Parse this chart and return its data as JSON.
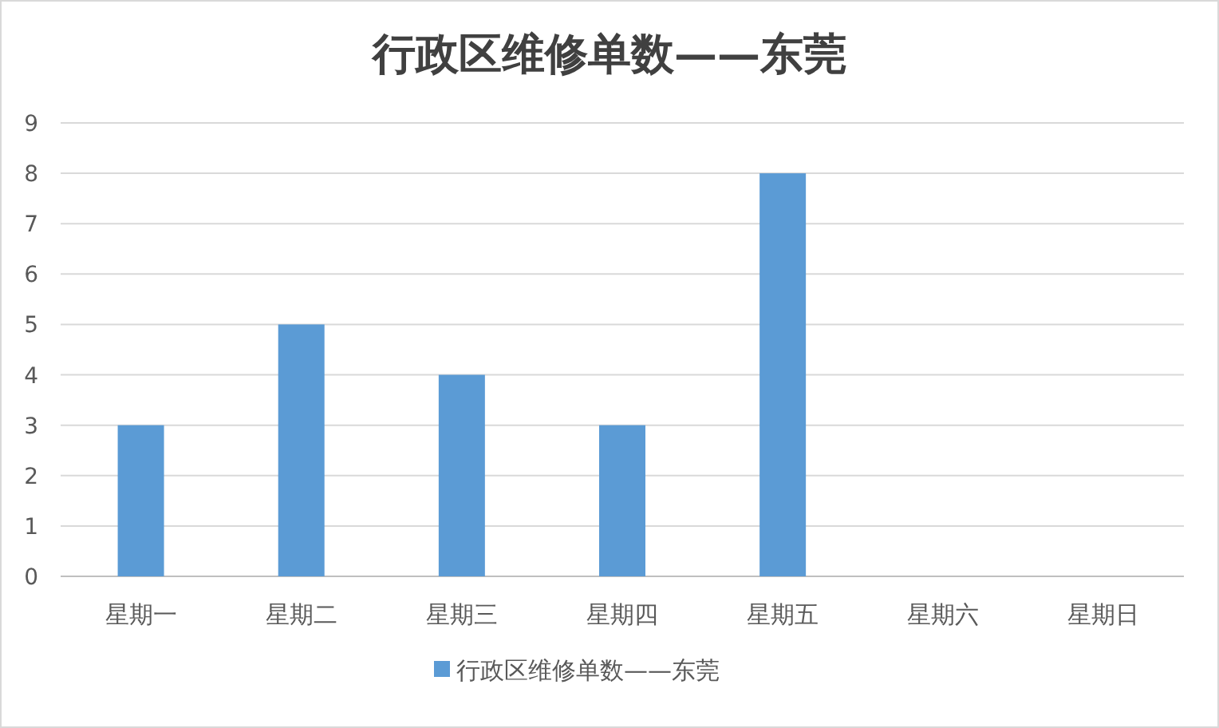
{
  "chart_data": {
    "type": "bar",
    "title": "行政区维修单数——东莞",
    "categories": [
      "星期一",
      "星期二",
      "星期三",
      "星期四",
      "星期五",
      "星期六",
      "星期日"
    ],
    "series": [
      {
        "name": "行政区维修单数——东莞",
        "color": "#5b9bd5",
        "values": [
          3,
          5,
          4,
          3,
          8,
          0,
          0
        ]
      }
    ],
    "ylim": [
      0,
      9
    ],
    "yticks": [
      0,
      1,
      2,
      3,
      4,
      5,
      6,
      7,
      8,
      9
    ],
    "grid": "y",
    "legend": "bottom"
  }
}
